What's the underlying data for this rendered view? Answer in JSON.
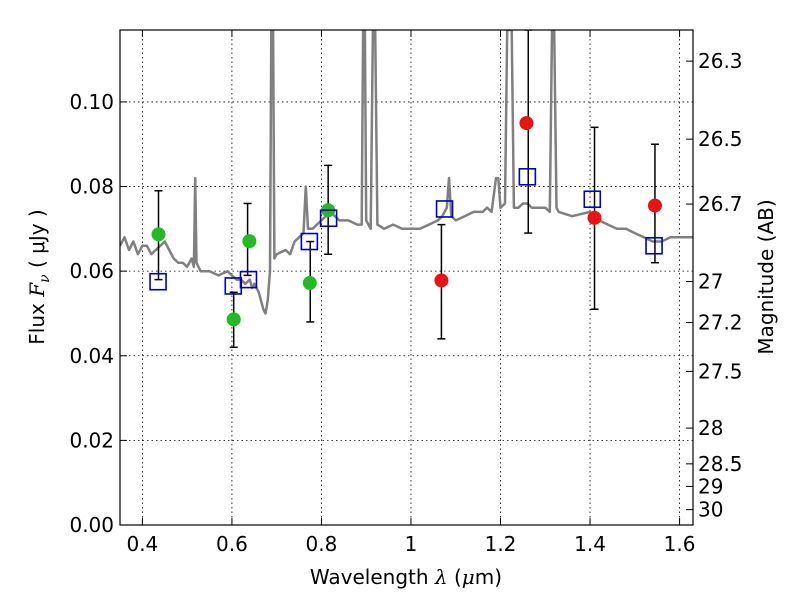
{
  "chart_data": {
    "type": "scatter",
    "title": "",
    "xlabel": "Wavelength  λ (μm)",
    "ylabel": "Flux  F_ν  ( μJy )",
    "ylabel_parts": {
      "flux": "Flux",
      "symbol": "F",
      "subscript": "ν",
      "unit": "( μJy )"
    },
    "xlabel_parts": {
      "word": "Wavelength",
      "symbol": "λ",
      "unit_open": "(",
      "mu": "μ",
      "unit_rest": "m)"
    },
    "y2label": "Magnitude (AB)",
    "xlim": [
      0.35,
      1.63
    ],
    "ylim": [
      0.0,
      0.117
    ],
    "grid": true,
    "grid_style": "dotted",
    "x_ticks": [
      {
        "value": 0.4,
        "label": "0.4"
      },
      {
        "value": 0.6,
        "label": "0.6"
      },
      {
        "value": 0.8,
        "label": "0.8"
      },
      {
        "value": 1.0,
        "label": "1"
      },
      {
        "value": 1.2,
        "label": "1.2"
      },
      {
        "value": 1.4,
        "label": "1.4"
      },
      {
        "value": 1.6,
        "label": "1.6"
      }
    ],
    "y_ticks": [
      {
        "value": 0.0,
        "label": "0.00"
      },
      {
        "value": 0.02,
        "label": "0.02"
      },
      {
        "value": 0.04,
        "label": "0.04"
      },
      {
        "value": 0.06,
        "label": "0.06"
      },
      {
        "value": 0.08,
        "label": "0.08"
      },
      {
        "value": 0.1,
        "label": "0.10"
      }
    ],
    "y2_ticks": [
      {
        "value": 26.3,
        "label": "26.3"
      },
      {
        "value": 26.5,
        "label": "26.5"
      },
      {
        "value": 26.7,
        "label": "26.7"
      },
      {
        "value": 27.0,
        "label": "27"
      },
      {
        "value": 27.2,
        "label": "27.2"
      },
      {
        "value": 27.5,
        "label": "27.5"
      },
      {
        "value": 28.0,
        "label": "28"
      },
      {
        "value": 28.5,
        "label": "28.5"
      },
      {
        "value": 29.0,
        "label": "29"
      },
      {
        "value": 30.0,
        "label": "30"
      }
    ],
    "series": [
      {
        "kind": "line",
        "color": "#808080",
        "points": [
          [
            0.35,
            0.066
          ],
          [
            0.36,
            0.068
          ],
          [
            0.37,
            0.065
          ],
          [
            0.38,
            0.067
          ],
          [
            0.39,
            0.064
          ],
          [
            0.4,
            0.066
          ],
          [
            0.41,
            0.066
          ],
          [
            0.42,
            0.064
          ],
          [
            0.43,
            0.065
          ],
          [
            0.44,
            0.066
          ],
          [
            0.45,
            0.067
          ],
          [
            0.46,
            0.065
          ],
          [
            0.47,
            0.063
          ],
          [
            0.48,
            0.062
          ],
          [
            0.49,
            0.062
          ],
          [
            0.5,
            0.061
          ],
          [
            0.51,
            0.063
          ],
          [
            0.515,
            0.061
          ],
          [
            0.518,
            0.082
          ],
          [
            0.521,
            0.062
          ],
          [
            0.53,
            0.06
          ],
          [
            0.55,
            0.06
          ],
          [
            0.57,
            0.059
          ],
          [
            0.59,
            0.06
          ],
          [
            0.6,
            0.059
          ],
          [
            0.61,
            0.058
          ],
          [
            0.62,
            0.058
          ],
          [
            0.63,
            0.057
          ],
          [
            0.64,
            0.058
          ],
          [
            0.645,
            0.056
          ],
          [
            0.65,
            0.057
          ],
          [
            0.66,
            0.055
          ],
          [
            0.67,
            0.051
          ],
          [
            0.675,
            0.05
          ],
          [
            0.68,
            0.053
          ],
          [
            0.685,
            0.06
          ],
          [
            0.688,
            0.117
          ],
          [
            0.692,
            0.117
          ],
          [
            0.695,
            0.063
          ],
          [
            0.7,
            0.064
          ],
          [
            0.72,
            0.065
          ],
          [
            0.73,
            0.064
          ],
          [
            0.74,
            0.067
          ],
          [
            0.75,
            0.068
          ],
          [
            0.76,
            0.069
          ],
          [
            0.765,
            0.08
          ],
          [
            0.77,
            0.07
          ],
          [
            0.78,
            0.07
          ],
          [
            0.79,
            0.071
          ],
          [
            0.8,
            0.072
          ],
          [
            0.81,
            0.073
          ],
          [
            0.82,
            0.074
          ],
          [
            0.83,
            0.073
          ],
          [
            0.84,
            0.072
          ],
          [
            0.86,
            0.072
          ],
          [
            0.88,
            0.071
          ],
          [
            0.89,
            0.071
          ],
          [
            0.893,
            0.117
          ],
          [
            0.897,
            0.117
          ],
          [
            0.9,
            0.072
          ],
          [
            0.91,
            0.07
          ],
          [
            0.915,
            0.117
          ],
          [
            0.92,
            0.117
          ],
          [
            0.925,
            0.071
          ],
          [
            0.94,
            0.07
          ],
          [
            0.96,
            0.071
          ],
          [
            0.98,
            0.07
          ],
          [
            1.0,
            0.07
          ],
          [
            1.02,
            0.07
          ],
          [
            1.04,
            0.071
          ],
          [
            1.06,
            0.072
          ],
          [
            1.07,
            0.073
          ],
          [
            1.08,
            0.075
          ],
          [
            1.085,
            0.082
          ],
          [
            1.09,
            0.073
          ],
          [
            1.1,
            0.072
          ],
          [
            1.12,
            0.073
          ],
          [
            1.14,
            0.074
          ],
          [
            1.16,
            0.074
          ],
          [
            1.17,
            0.075
          ],
          [
            1.18,
            0.074
          ],
          [
            1.19,
            0.082
          ],
          [
            1.195,
            0.082
          ],
          [
            1.2,
            0.075
          ],
          [
            1.21,
            0.076
          ],
          [
            1.215,
            0.117
          ],
          [
            1.225,
            0.117
          ],
          [
            1.23,
            0.075
          ],
          [
            1.24,
            0.075
          ],
          [
            1.25,
            0.076
          ],
          [
            1.26,
            0.076
          ],
          [
            1.27,
            0.075
          ],
          [
            1.28,
            0.075
          ],
          [
            1.3,
            0.075
          ],
          [
            1.31,
            0.074
          ],
          [
            1.315,
            0.117
          ],
          [
            1.32,
            0.117
          ],
          [
            1.325,
            0.075
          ],
          [
            1.33,
            0.074
          ],
          [
            1.36,
            0.073
          ],
          [
            1.4,
            0.074
          ],
          [
            1.42,
            0.072
          ],
          [
            1.44,
            0.071
          ],
          [
            1.46,
            0.07
          ],
          [
            1.48,
            0.07
          ],
          [
            1.5,
            0.069
          ],
          [
            1.52,
            0.068
          ],
          [
            1.54,
            0.067
          ],
          [
            1.56,
            0.067
          ],
          [
            1.58,
            0.068
          ],
          [
            1.6,
            0.068
          ],
          [
            1.63,
            0.068
          ]
        ]
      },
      {
        "kind": "errorbars",
        "color": "#000000",
        "bars": [
          {
            "x": 0.436,
            "low": 0.058,
            "high": 0.079
          },
          {
            "x": 0.604,
            "low": 0.042,
            "high": 0.055
          },
          {
            "x": 0.635,
            "low": 0.059,
            "high": 0.076
          },
          {
            "x": 0.775,
            "low": 0.048,
            "high": 0.067
          },
          {
            "x": 0.815,
            "low": 0.064,
            "high": 0.085
          },
          {
            "x": 1.068,
            "low": 0.044,
            "high": 0.071
          },
          {
            "x": 1.262,
            "low": 0.069,
            "high": 0.117
          },
          {
            "x": 1.41,
            "low": 0.051,
            "high": 0.094
          },
          {
            "x": 1.545,
            "low": 0.062,
            "high": 0.09
          }
        ]
      },
      {
        "kind": "markers",
        "marker": "circle",
        "color": "#22bb22",
        "points": [
          [
            0.436,
            0.0687
          ],
          [
            0.604,
            0.0486
          ],
          [
            0.639,
            0.0671
          ],
          [
            0.774,
            0.0572
          ],
          [
            0.815,
            0.0744
          ]
        ]
      },
      {
        "kind": "markers",
        "marker": "circle",
        "color": "#ee1111",
        "points": [
          [
            1.068,
            0.0578
          ],
          [
            1.258,
            0.095
          ],
          [
            1.41,
            0.0726
          ],
          [
            1.545,
            0.0755
          ]
        ]
      },
      {
        "kind": "markers",
        "marker": "open-square",
        "color": "#0000cc",
        "points": [
          [
            0.435,
            0.0575
          ],
          [
            0.603,
            0.0565
          ],
          [
            0.637,
            0.058
          ],
          [
            0.773,
            0.067
          ],
          [
            0.816,
            0.0725
          ],
          [
            1.075,
            0.0747
          ],
          [
            1.26,
            0.0823
          ],
          [
            1.405,
            0.077
          ],
          [
            1.543,
            0.066
          ]
        ]
      }
    ]
  }
}
